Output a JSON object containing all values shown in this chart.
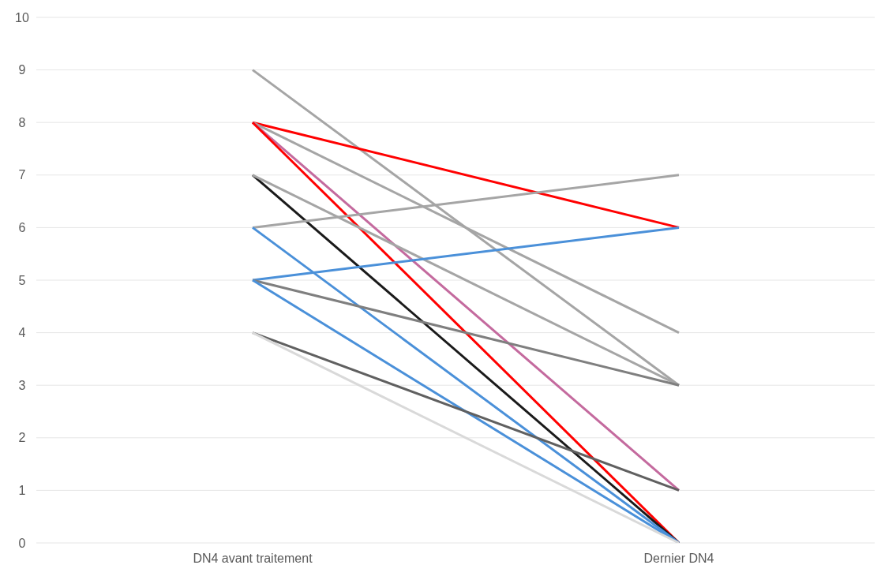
{
  "chart_data": {
    "type": "line",
    "categories": [
      "DN4 avant traitement",
      "Dernier DN4"
    ],
    "series": [
      {
        "color": "#a5a5a5",
        "values": [
          9,
          3
        ]
      },
      {
        "color": "#ff0000",
        "values": [
          8,
          6
        ]
      },
      {
        "color": "#a5a5a5",
        "values": [
          8,
          4
        ]
      },
      {
        "color": "#c46a9e",
        "values": [
          8,
          1
        ]
      },
      {
        "color": "#ff0000",
        "values": [
          8,
          0
        ]
      },
      {
        "color": "#1a1a1a",
        "values": [
          7,
          0
        ]
      },
      {
        "color": "#a5a5a5",
        "values": [
          7,
          3
        ]
      },
      {
        "color": "#a5a5a5",
        "values": [
          6,
          7
        ]
      },
      {
        "color": "#4a90d9",
        "values": [
          6,
          0
        ]
      },
      {
        "color": "#4a90d9",
        "values": [
          5,
          6
        ]
      },
      {
        "color": "#7f7f7f",
        "values": [
          5,
          3
        ]
      },
      {
        "color": "#4a90d9",
        "values": [
          5,
          0
        ]
      },
      {
        "color": "#606060",
        "values": [
          4,
          1
        ]
      },
      {
        "color": "#d9d9d9",
        "values": [
          4,
          0
        ]
      }
    ],
    "ylim": [
      0,
      10
    ],
    "yticks": [
      0,
      1,
      2,
      3,
      4,
      5,
      6,
      7,
      8,
      9,
      10
    ],
    "grid": "y",
    "legend": false,
    "marker": "none",
    "line_style": "solid"
  }
}
